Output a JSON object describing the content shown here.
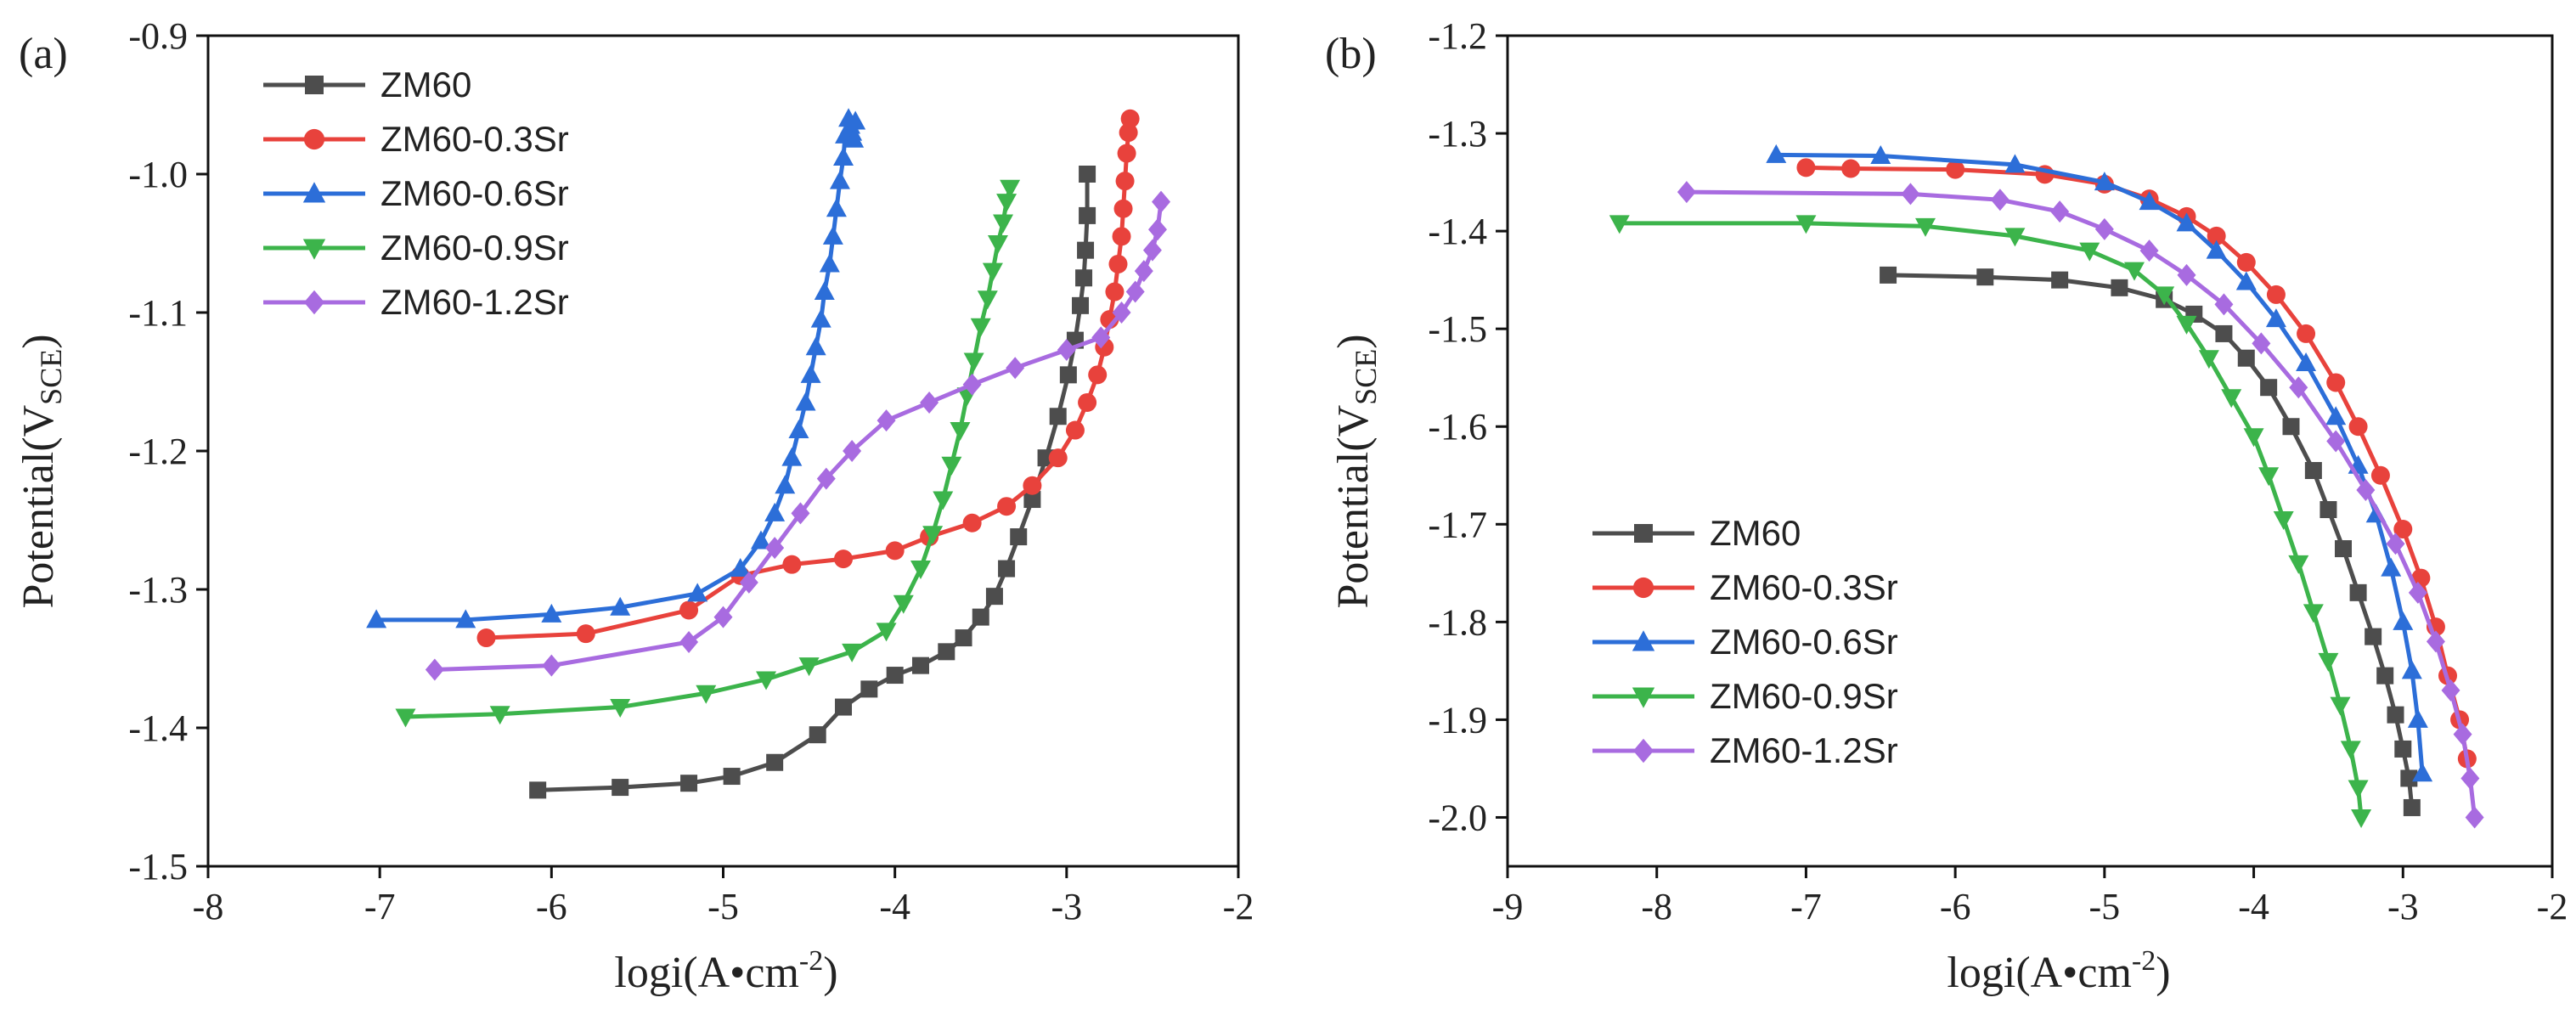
{
  "chart_data": [
    {
      "type": "line",
      "panel_label": "(a)",
      "xlabel": "logi(A•cm-2)",
      "xlabel_base": "logi(A•cm",
      "xlabel_sup": "-2",
      "xlabel_end": ")",
      "ylabel": "Potential(VSCE)",
      "ylabel_base": "Potential(V",
      "ylabel_sub": "SCE",
      "ylabel_end": ")",
      "xlim": [
        -8,
        -2
      ],
      "ylim": [
        -1.5,
        -0.9
      ],
      "xticks": [
        -8,
        -7,
        -6,
        -5,
        -4,
        -3,
        -2
      ],
      "xtick_labels": [
        "-8",
        "-7",
        "-6",
        "-5",
        "-4",
        "-3",
        "-2"
      ],
      "yticks": [
        -1.5,
        -1.4,
        -1.3,
        -1.2,
        -1.1,
        -1.0,
        -0.9
      ],
      "ytick_labels": [
        "-1.5",
        "-1.4",
        "-1.3",
        "-1.2",
        "-1.1",
        "-1.0",
        "-0.9"
      ],
      "legend_position": "top-left",
      "series": [
        {
          "name": "ZM60",
          "color": "#4d4d4d",
          "marker": "square",
          "x": [
            -6.08,
            -5.6,
            -5.2,
            -4.95,
            -4.7,
            -4.45,
            -4.3,
            -4.15,
            -4.0,
            -3.85,
            -3.7,
            -3.6,
            -3.5,
            -3.42,
            -3.35,
            -3.28,
            -3.2,
            -3.12,
            -3.05,
            -2.99,
            -2.95,
            -2.92,
            -2.9,
            -2.89,
            -2.88,
            -2.88
          ],
          "y": [
            -1.445,
            -1.443,
            -1.44,
            -1.435,
            -1.425,
            -1.405,
            -1.385,
            -1.372,
            -1.362,
            -1.355,
            -1.345,
            -1.335,
            -1.32,
            -1.305,
            -1.285,
            -1.262,
            -1.235,
            -1.205,
            -1.175,
            -1.145,
            -1.12,
            -1.095,
            -1.075,
            -1.055,
            -1.03,
            -1.0
          ]
        },
        {
          "name": "ZM60-0.3Sr",
          "color": "#e8423c",
          "marker": "circle",
          "x": [
            -6.38,
            -5.8,
            -5.2,
            -4.9,
            -4.6,
            -4.3,
            -4.0,
            -3.8,
            -3.55,
            -3.35,
            -3.2,
            -3.05,
            -2.95,
            -2.88,
            -2.82,
            -2.78,
            -2.75,
            -2.72,
            -2.7,
            -2.68,
            -2.67,
            -2.66,
            -2.65,
            -2.64,
            -2.63
          ],
          "y": [
            -1.335,
            -1.332,
            -1.315,
            -1.29,
            -1.282,
            -1.278,
            -1.272,
            -1.262,
            -1.252,
            -1.24,
            -1.225,
            -1.205,
            -1.185,
            -1.165,
            -1.145,
            -1.125,
            -1.105,
            -1.085,
            -1.065,
            -1.045,
            -1.025,
            -1.005,
            -0.985,
            -0.97,
            -0.96
          ]
        },
        {
          "name": "ZM60-0.6Sr",
          "color": "#2c6ed8",
          "marker": "triangle-up",
          "x": [
            -7.02,
            -6.5,
            -6.0,
            -5.6,
            -5.15,
            -4.9,
            -4.78,
            -4.7,
            -4.64,
            -4.6,
            -4.56,
            -4.52,
            -4.49,
            -4.46,
            -4.43,
            -4.41,
            -4.38,
            -4.36,
            -4.34,
            -4.32,
            -4.3,
            -4.29,
            -4.27,
            -4.26,
            -4.25,
            -4.24,
            -4.23
          ],
          "y": [
            -1.322,
            -1.322,
            -1.318,
            -1.313,
            -1.303,
            -1.285,
            -1.265,
            -1.245,
            -1.225,
            -1.205,
            -1.185,
            -1.165,
            -1.145,
            -1.125,
            -1.105,
            -1.085,
            -1.065,
            -1.045,
            -1.025,
            -1.005,
            -0.988,
            -0.972,
            -0.96,
            -0.965,
            -0.97,
            -0.975,
            -0.962
          ]
        },
        {
          "name": "ZM60-0.9Sr",
          "color": "#3cb44b",
          "marker": "triangle-down",
          "x": [
            -6.85,
            -6.3,
            -5.6,
            -5.1,
            -4.75,
            -4.5,
            -4.25,
            -4.05,
            -3.95,
            -3.85,
            -3.78,
            -3.72,
            -3.67,
            -3.62,
            -3.58,
            -3.54,
            -3.5,
            -3.46,
            -3.43,
            -3.4,
            -3.37,
            -3.35,
            -3.33
          ],
          "y": [
            -1.392,
            -1.39,
            -1.385,
            -1.375,
            -1.365,
            -1.355,
            -1.345,
            -1.33,
            -1.31,
            -1.285,
            -1.26,
            -1.235,
            -1.21,
            -1.185,
            -1.16,
            -1.135,
            -1.11,
            -1.09,
            -1.07,
            -1.05,
            -1.035,
            -1.02,
            -1.01
          ]
        },
        {
          "name": "ZM60-1.2Sr",
          "color": "#a86be0",
          "marker": "diamond",
          "x": [
            -6.68,
            -6.0,
            -5.2,
            -5.0,
            -4.85,
            -4.7,
            -4.55,
            -4.4,
            -4.25,
            -4.05,
            -3.8,
            -3.55,
            -3.3,
            -3.0,
            -2.8,
            -2.68,
            -2.6,
            -2.55,
            -2.5,
            -2.47,
            -2.45
          ],
          "y": [
            -1.358,
            -1.355,
            -1.338,
            -1.32,
            -1.295,
            -1.27,
            -1.245,
            -1.22,
            -1.2,
            -1.178,
            -1.165,
            -1.152,
            -1.14,
            -1.127,
            -1.118,
            -1.1,
            -1.085,
            -1.07,
            -1.055,
            -1.04,
            -1.02
          ]
        }
      ]
    },
    {
      "type": "line",
      "panel_label": "(b)",
      "xlabel": "logi(A•cm-2)",
      "xlabel_base": "logi(A•cm",
      "xlabel_sup": "-2",
      "xlabel_end": ")",
      "ylabel": "Potential(VSCE)",
      "ylabel_base": "Potential(V",
      "ylabel_sub": "SCE",
      "ylabel_end": ")",
      "xlim": [
        -9,
        -2
      ],
      "ylim": [
        -2.05,
        -1.2
      ],
      "xticks": [
        -9,
        -8,
        -7,
        -6,
        -5,
        -4,
        -3,
        -2
      ],
      "xtick_labels": [
        "-9",
        "-8",
        "-7",
        "-6",
        "-5",
        "-4",
        "-3",
        "-2"
      ],
      "yticks": [
        -2.0,
        -1.9,
        -1.8,
        -1.7,
        -1.6,
        -1.5,
        -1.4,
        -1.3,
        -1.2
      ],
      "ytick_labels": [
        "-2.0",
        "-1.9",
        "-1.8",
        "-1.7",
        "-1.6",
        "-1.5",
        "-1.4",
        "-1.3",
        "-1.2"
      ],
      "legend_position": "bottom-left",
      "series": [
        {
          "name": "ZM60",
          "color": "#4d4d4d",
          "marker": "square",
          "x": [
            -6.45,
            -5.8,
            -5.3,
            -4.9,
            -4.6,
            -4.4,
            -4.2,
            -4.05,
            -3.9,
            -3.75,
            -3.6,
            -3.5,
            -3.4,
            -3.3,
            -3.2,
            -3.12,
            -3.05,
            -3.0,
            -2.96,
            -2.94
          ],
          "y": [
            -1.445,
            -1.447,
            -1.45,
            -1.458,
            -1.47,
            -1.485,
            -1.505,
            -1.53,
            -1.56,
            -1.6,
            -1.645,
            -1.685,
            -1.725,
            -1.77,
            -1.815,
            -1.855,
            -1.895,
            -1.93,
            -1.96,
            -1.99
          ]
        },
        {
          "name": "ZM60-0.3Sr",
          "color": "#e8423c",
          "marker": "circle",
          "x": [
            -7.0,
            -6.7,
            -6.0,
            -5.4,
            -5.0,
            -4.7,
            -4.45,
            -4.25,
            -4.05,
            -3.85,
            -3.65,
            -3.45,
            -3.3,
            -3.15,
            -3.0,
            -2.88,
            -2.78,
            -2.7,
            -2.62,
            -2.57
          ],
          "y": [
            -1.335,
            -1.336,
            -1.337,
            -1.342,
            -1.352,
            -1.367,
            -1.385,
            -1.405,
            -1.432,
            -1.465,
            -1.505,
            -1.555,
            -1.6,
            -1.65,
            -1.705,
            -1.755,
            -1.805,
            -1.855,
            -1.9,
            -1.94
          ]
        },
        {
          "name": "ZM60-0.6Sr",
          "color": "#2c6ed8",
          "marker": "triangle-up",
          "x": [
            -7.2,
            -6.5,
            -5.6,
            -5.0,
            -4.7,
            -4.45,
            -4.25,
            -4.05,
            -3.85,
            -3.65,
            -3.45,
            -3.3,
            -3.18,
            -3.08,
            -3.0,
            -2.94,
            -2.9,
            -2.87
          ],
          "y": [
            -1.322,
            -1.323,
            -1.332,
            -1.35,
            -1.37,
            -1.392,
            -1.42,
            -1.452,
            -1.49,
            -1.535,
            -1.59,
            -1.64,
            -1.69,
            -1.745,
            -1.8,
            -1.85,
            -1.9,
            -1.955
          ]
        },
        {
          "name": "ZM60-0.9Sr",
          "color": "#3cb44b",
          "marker": "triangle-down",
          "x": [
            -8.25,
            -7.0,
            -6.2,
            -5.6,
            -5.1,
            -4.8,
            -4.6,
            -4.45,
            -4.3,
            -4.15,
            -4.0,
            -3.9,
            -3.8,
            -3.7,
            -3.6,
            -3.5,
            -3.42,
            -3.35,
            -3.3,
            -3.28
          ],
          "y": [
            -1.392,
            -1.392,
            -1.395,
            -1.405,
            -1.42,
            -1.44,
            -1.465,
            -1.495,
            -1.53,
            -1.57,
            -1.61,
            -1.65,
            -1.695,
            -1.74,
            -1.79,
            -1.84,
            -1.885,
            -1.93,
            -1.97,
            -2.0
          ]
        },
        {
          "name": "ZM60-1.2Sr",
          "color": "#a86be0",
          "marker": "diamond",
          "x": [
            -7.8,
            -6.3,
            -5.7,
            -5.3,
            -5.0,
            -4.7,
            -4.45,
            -4.2,
            -3.95,
            -3.7,
            -3.45,
            -3.25,
            -3.05,
            -2.9,
            -2.78,
            -2.68,
            -2.6,
            -2.55,
            -2.52
          ],
          "y": [
            -1.36,
            -1.362,
            -1.368,
            -1.38,
            -1.398,
            -1.42,
            -1.445,
            -1.475,
            -1.515,
            -1.56,
            -1.615,
            -1.665,
            -1.72,
            -1.77,
            -1.82,
            -1.87,
            -1.915,
            -1.96,
            -2.0
          ]
        }
      ]
    }
  ]
}
